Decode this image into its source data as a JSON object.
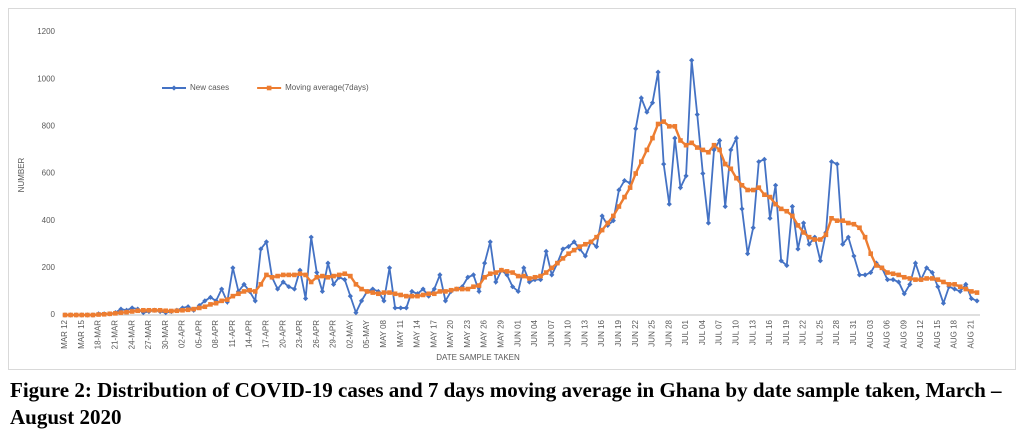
{
  "chart_data": {
    "type": "line",
    "caption": "Figure 2: Distribution of COVID-19 cases and 7 days moving average in Ghana by date sample taken, March – August 2020",
    "x_label": "DATE SAMPLE TAKEN",
    "y_label": "NUMBER",
    "legend": "top-left",
    "grid": false,
    "ylim": [
      0,
      1200
    ],
    "yticks": [
      0,
      200,
      400,
      600,
      800,
      1000,
      1200
    ],
    "categories": [
      "MAR 12",
      null,
      null,
      "MAR 15",
      null,
      null,
      "18-MAR",
      null,
      null,
      "21-MAR",
      null,
      null,
      "24-MAR",
      null,
      null,
      "27-MAR",
      null,
      null,
      "30-MAR",
      null,
      null,
      "02-APR",
      null,
      null,
      "05-APR",
      null,
      null,
      "08-APR",
      null,
      null,
      "11-APR",
      null,
      null,
      "14-APR",
      null,
      null,
      "17-APR",
      null,
      null,
      "20-APR",
      null,
      null,
      "23-APR",
      null,
      null,
      "26-APR",
      null,
      null,
      "29-APR",
      null,
      null,
      "02-MAY",
      null,
      null,
      "05-MAY",
      null,
      null,
      "MAY 08",
      null,
      null,
      "MAY 11",
      null,
      null,
      "MAY 14",
      null,
      null,
      "MAY 17",
      null,
      null,
      "MAY 20",
      null,
      null,
      "MAY 23",
      null,
      null,
      "MAY 26",
      null,
      null,
      "MAY 29",
      null,
      null,
      "JUN 01",
      null,
      null,
      "JUN 04",
      null,
      null,
      "JUN 07",
      null,
      null,
      "JUN 10",
      null,
      null,
      "JUN 13",
      null,
      null,
      "JUN 16",
      null,
      null,
      "JUN 19",
      null,
      null,
      "JUN 22",
      null,
      null,
      "JUN 25",
      null,
      null,
      "JUN 28",
      null,
      null,
      "JUL 01",
      null,
      null,
      "JUL 04",
      null,
      null,
      "JUL 07",
      null,
      null,
      "JUL 10",
      null,
      null,
      "JUL 13",
      null,
      null,
      "JUL 16",
      null,
      null,
      "JUL 19",
      null,
      null,
      "JUL 22",
      null,
      null,
      "JUL 25",
      null,
      null,
      "JUL 28",
      null,
      null,
      "JUL 31",
      null,
      null,
      "AUG 03",
      null,
      null,
      "AUG 06",
      null,
      null,
      "AUG 09",
      null,
      null,
      "AUG 12",
      null,
      null,
      "AUG 15",
      null,
      null,
      "AUG 18",
      null,
      null,
      "AUG 21",
      null
    ],
    "series": [
      {
        "name": "New cases",
        "color": "#4472c4",
        "marker": "diamond",
        "values": [
          0,
          0,
          0,
          0,
          0,
          0,
          5,
          5,
          5,
          10,
          25,
          20,
          30,
          25,
          10,
          15,
          20,
          15,
          10,
          15,
          20,
          30,
          35,
          20,
          40,
          60,
          75,
          60,
          110,
          55,
          200,
          100,
          130,
          100,
          60,
          280,
          310,
          160,
          110,
          140,
          120,
          110,
          190,
          70,
          330,
          180,
          100,
          220,
          130,
          160,
          150,
          80,
          10,
          60,
          100,
          110,
          100,
          60,
          200,
          30,
          30,
          30,
          100,
          90,
          110,
          80,
          110,
          170,
          60,
          100,
          110,
          120,
          160,
          170,
          100,
          220,
          310,
          140,
          190,
          170,
          120,
          100,
          200,
          140,
          150,
          150,
          270,
          170,
          220,
          280,
          290,
          310,
          280,
          250,
          310,
          290,
          420,
          380,
          400,
          530,
          570,
          560,
          790,
          920,
          860,
          900,
          1030,
          640,
          470,
          750,
          540,
          590,
          1080,
          850,
          600,
          390,
          700,
          740,
          460,
          700,
          750,
          450,
          260,
          370,
          650,
          660,
          410,
          550,
          230,
          210,
          460,
          280,
          390,
          300,
          330,
          230,
          350,
          650,
          640,
          300,
          330,
          250,
          170,
          170,
          180,
          220,
          200,
          150,
          150,
          140,
          90,
          130,
          220,
          150,
          200,
          180,
          120,
          50,
          120,
          110,
          100,
          130,
          70,
          60
        ]
      },
      {
        "name": "Moving average(7days)",
        "color": "#ed7d31",
        "marker": "square",
        "values": [
          0,
          0,
          0,
          0,
          0,
          0,
          2,
          3,
          5,
          7,
          10,
          12,
          15,
          18,
          20,
          20,
          20,
          20,
          18,
          17,
          18,
          20,
          22,
          25,
          30,
          35,
          45,
          50,
          60,
          65,
          80,
          90,
          100,
          105,
          100,
          130,
          170,
          160,
          165,
          170,
          170,
          170,
          175,
          170,
          140,
          160,
          165,
          160,
          165,
          170,
          175,
          165,
          130,
          110,
          100,
          95,
          90,
          95,
          95,
          90,
          85,
          80,
          80,
          80,
          85,
          90,
          90,
          100,
          100,
          105,
          110,
          110,
          110,
          120,
          125,
          160,
          175,
          180,
          190,
          185,
          180,
          165,
          165,
          155,
          160,
          165,
          180,
          200,
          220,
          240,
          260,
          275,
          290,
          300,
          310,
          330,
          360,
          390,
          420,
          460,
          500,
          540,
          600,
          650,
          700,
          750,
          810,
          820,
          800,
          800,
          740,
          720,
          730,
          710,
          700,
          690,
          720,
          700,
          640,
          620,
          580,
          550,
          530,
          530,
          540,
          510,
          500,
          470,
          450,
          440,
          420,
          380,
          350,
          330,
          320,
          320,
          340,
          410,
          400,
          400,
          390,
          385,
          370,
          330,
          260,
          210,
          200,
          180,
          175,
          170,
          160,
          155,
          150,
          150,
          155,
          155,
          150,
          140,
          130,
          130,
          120,
          110,
          100,
          95
        ]
      }
    ]
  }
}
